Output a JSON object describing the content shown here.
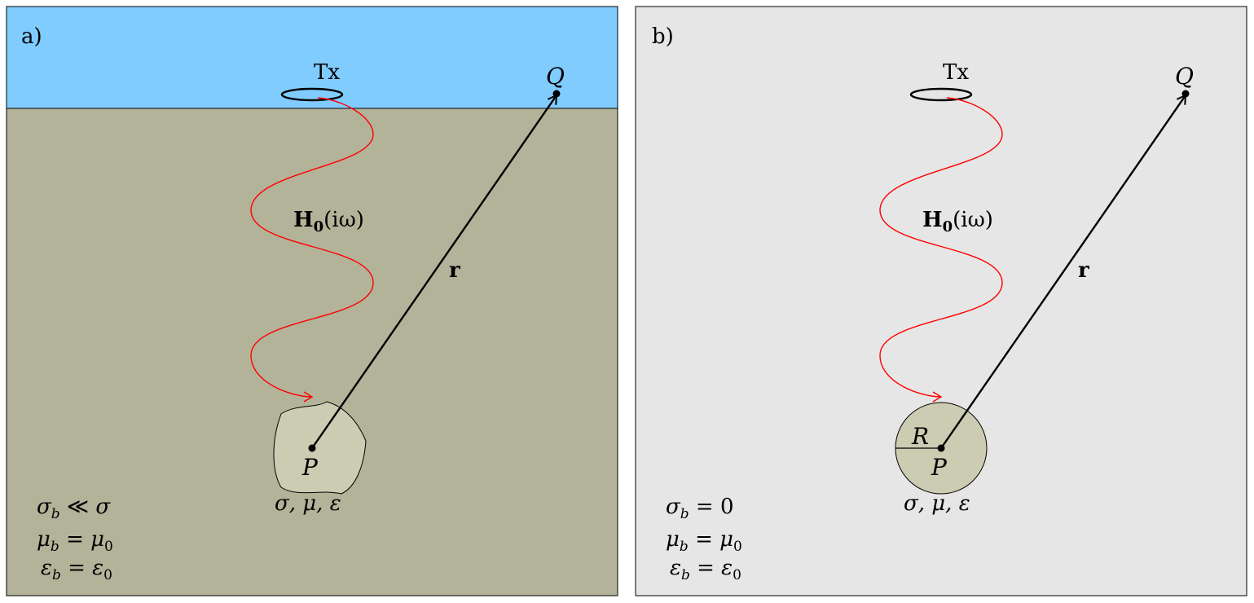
{
  "panel_a": {
    "tag": "a)",
    "transmitter": "Tx",
    "receiver_point": "Q",
    "source_point": "P",
    "field": {
      "main": "H",
      "sub": "0",
      "arg": "(iω)"
    },
    "vector": "r",
    "body_props": "σ, μ, ε",
    "conditions": [
      {
        "lhs": "σ",
        "sub": "b",
        "rel": "≪",
        "rhs": "σ",
        "rhs_sub": ""
      },
      {
        "lhs": "μ",
        "sub": "b",
        "rel": "=",
        "rhs": "μ",
        "rhs_sub": "0"
      },
      {
        "lhs": "ε",
        "sub": "b",
        "rel": "=",
        "rhs": "ε",
        "rhs_sub": "0"
      }
    ],
    "colors": {
      "air": "#80ccff",
      "ground": "#b3b39a",
      "body": "#ccccb3"
    }
  },
  "panel_b": {
    "tag": "b)",
    "transmitter": "Tx",
    "receiver_point": "Q",
    "source_point": "P",
    "radius": "R",
    "field": {
      "main": "H",
      "sub": "0",
      "arg": "(iω)"
    },
    "vector": "r",
    "body_props": "σ, μ, ε",
    "conditions": [
      {
        "lhs": "σ",
        "sub": "b",
        "rel": "=",
        "rhs": "0",
        "rhs_sub": ""
      },
      {
        "lhs": "μ",
        "sub": "b",
        "rel": "=",
        "rhs": "μ",
        "rhs_sub": "0"
      },
      {
        "lhs": "ε",
        "sub": "b",
        "rel": "=",
        "rhs": "ε",
        "rhs_sub": "0"
      }
    ],
    "colors": {
      "background": "#e6e6e6",
      "body": "#ccccb3"
    }
  },
  "colors": {
    "wave": "#ff0000",
    "line": "#000000"
  }
}
